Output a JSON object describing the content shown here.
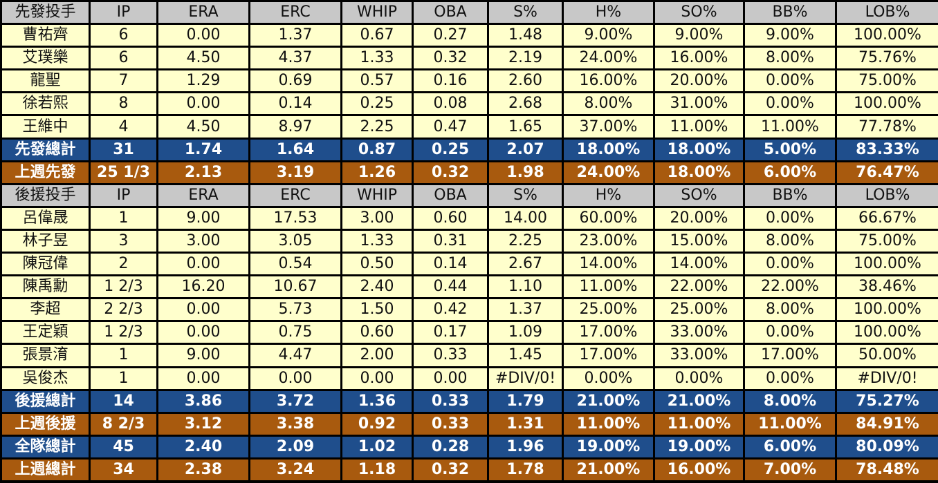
{
  "columns_metric": [
    "IP",
    "ERA",
    "ERC",
    "WHIP",
    "OBA",
    "S%",
    "H%",
    "SO%",
    "BB%",
    "LOB%"
  ],
  "starters": {
    "header": "先發投手",
    "rows": [
      [
        "曹祐齊",
        "6",
        "0.00",
        "1.37",
        "0.67",
        "0.27",
        "1.48",
        "9.00%",
        "9.00%",
        "9.00%",
        "100.00%"
      ],
      [
        "艾璞樂",
        "6",
        "4.50",
        "4.37",
        "1.33",
        "0.32",
        "2.19",
        "24.00%",
        "16.00%",
        "8.00%",
        "75.76%"
      ],
      [
        "龍聖",
        "7",
        "1.29",
        "0.69",
        "0.57",
        "0.16",
        "2.60",
        "16.00%",
        "20.00%",
        "0.00%",
        "75.00%"
      ],
      [
        "徐若熙",
        "8",
        "0.00",
        "0.14",
        "0.25",
        "0.08",
        "2.68",
        "8.00%",
        "31.00%",
        "0.00%",
        "100.00%"
      ],
      [
        "王維中",
        "4",
        "4.50",
        "8.97",
        "2.25",
        "0.47",
        "1.65",
        "37.00%",
        "11.00%",
        "11.00%",
        "77.78%"
      ]
    ],
    "total": [
      "先發總計",
      "31",
      "1.74",
      "1.64",
      "0.87",
      "0.25",
      "2.07",
      "18.00%",
      "18.00%",
      "5.00%",
      "83.33%"
    ],
    "last_week": [
      "上週先發",
      "25 1/3",
      "2.13",
      "3.19",
      "1.26",
      "0.32",
      "1.98",
      "24.00%",
      "18.00%",
      "6.00%",
      "76.47%"
    ]
  },
  "relievers": {
    "header": "後援投手",
    "rows": [
      [
        "呂偉晟",
        "1",
        "9.00",
        "17.53",
        "3.00",
        "0.60",
        "14.00",
        "60.00%",
        "20.00%",
        "0.00%",
        "66.67%"
      ],
      [
        "林子昱",
        "3",
        "3.00",
        "3.05",
        "1.33",
        "0.31",
        "2.25",
        "23.00%",
        "15.00%",
        "8.00%",
        "75.00%"
      ],
      [
        "陳冠偉",
        "2",
        "0.00",
        "0.54",
        "0.50",
        "0.14",
        "2.67",
        "14.00%",
        "14.00%",
        "0.00%",
        "100.00%"
      ],
      [
        "陳禹勳",
        "1 2/3",
        "16.20",
        "10.67",
        "2.40",
        "0.44",
        "1.10",
        "11.00%",
        "22.00%",
        "22.00%",
        "38.46%"
      ],
      [
        "李超",
        "2 2/3",
        "0.00",
        "5.73",
        "1.50",
        "0.42",
        "1.37",
        "25.00%",
        "25.00%",
        "8.00%",
        "100.00%"
      ],
      [
        "王定穎",
        "1 2/3",
        "0.00",
        "0.75",
        "0.60",
        "0.17",
        "1.09",
        "17.00%",
        "33.00%",
        "0.00%",
        "100.00%"
      ],
      [
        "張景淯",
        "1",
        "9.00",
        "4.47",
        "2.00",
        "0.33",
        "1.45",
        "17.00%",
        "33.00%",
        "17.00%",
        "50.00%"
      ],
      [
        "吳俊杰",
        "1",
        "0.00",
        "0.00",
        "0.00",
        "0.00",
        "#DIV/0!",
        "0.00%",
        "0.00%",
        "0.00%",
        "#DIV/0!"
      ]
    ],
    "total": [
      "後援總計",
      "14",
      "3.86",
      "3.72",
      "1.36",
      "0.33",
      "1.79",
      "21.00%",
      "21.00%",
      "8.00%",
      "75.27%"
    ],
    "last_week": [
      "上週後援",
      "8 2/3",
      "3.12",
      "3.38",
      "0.92",
      "0.33",
      "1.31",
      "11.00%",
      "11.00%",
      "11.00%",
      "84.91%"
    ]
  },
  "team_total": [
    "全隊總計",
    "45",
    "2.40",
    "2.09",
    "1.02",
    "0.28",
    "1.96",
    "19.00%",
    "19.00%",
    "6.00%",
    "80.09%"
  ],
  "team_last_week": [
    "上週總計",
    "34",
    "2.38",
    "3.24",
    "1.18",
    "0.32",
    "1.78",
    "21.00%",
    "16.00%",
    "7.00%",
    "78.48%"
  ],
  "colors": {
    "header_bg": "#c8c8c8",
    "row_bg": "#ffffcc",
    "total_bg": "#1f4e8c",
    "last_week_bg": "#a85a0e",
    "grid": "#000000"
  }
}
